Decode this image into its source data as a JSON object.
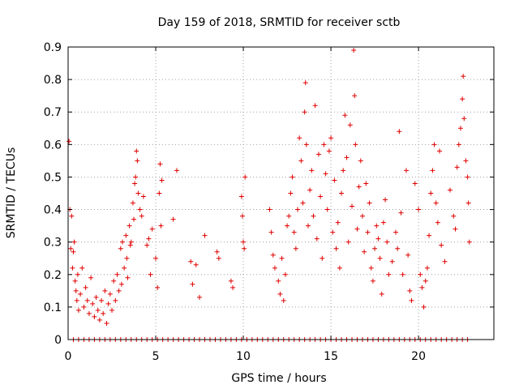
{
  "chart_data": {
    "type": "scatter",
    "title": "Day 159 of 2018, SRMTID for receiver sctb",
    "xlabel": "GPS time / hours",
    "ylabel": "SRMTID / TECUs",
    "xlim": [
      0,
      24.3
    ],
    "ylim": [
      0,
      0.9
    ],
    "xticks": [
      0,
      5,
      10,
      15,
      20
    ],
    "xtick_labels": [
      "0",
      "5",
      "10",
      "15",
      "20"
    ],
    "yticks": [
      0,
      0.1,
      0.2,
      0.3,
      0.4,
      0.5,
      0.6,
      0.7,
      0.8,
      0.9
    ],
    "ytick_labels": [
      "0",
      "0.1",
      "0.2",
      "0.3",
      "0.4",
      "0.5",
      "0.6",
      "0.7",
      "0.8",
      "0.9"
    ],
    "grid": true,
    "marker": "+",
    "color": "#e00000",
    "series": [
      {
        "name": "SRMTID",
        "points": [
          [
            0.05,
            0.61
          ],
          [
            0.1,
            0.4
          ],
          [
            0.2,
            0.38
          ],
          [
            0.15,
            0.28
          ],
          [
            0.25,
            0.22
          ],
          [
            0.3,
            0.27
          ],
          [
            0.35,
            0.3
          ],
          [
            0.4,
            0.18
          ],
          [
            0.45,
            0.15
          ],
          [
            0.5,
            0.12
          ],
          [
            0.55,
            0.2
          ],
          [
            0.6,
            0.09
          ],
          [
            0.7,
            0.14
          ],
          [
            0.8,
            0.22
          ],
          [
            0.9,
            0.1
          ],
          [
            1.0,
            0.16
          ],
          [
            1.1,
            0.12
          ],
          [
            1.2,
            0.08
          ],
          [
            1.3,
            0.19
          ],
          [
            1.4,
            0.11
          ],
          [
            1.5,
            0.07
          ],
          [
            1.6,
            0.13
          ],
          [
            1.7,
            0.09
          ],
          [
            1.8,
            0.06
          ],
          [
            1.9,
            0.12
          ],
          [
            2.0,
            0.08
          ],
          [
            2.1,
            0.15
          ],
          [
            2.2,
            0.05
          ],
          [
            2.3,
            0.11
          ],
          [
            2.4,
            0.14
          ],
          [
            2.5,
            0.09
          ],
          [
            2.6,
            0.18
          ],
          [
            2.7,
            0.12
          ],
          [
            2.8,
            0.2
          ],
          [
            2.9,
            0.15
          ],
          [
            3.0,
            0.28
          ],
          [
            3.05,
            0.17
          ],
          [
            3.1,
            0.3
          ],
          [
            3.2,
            0.22
          ],
          [
            3.3,
            0.32
          ],
          [
            3.35,
            0.25
          ],
          [
            3.4,
            0.19
          ],
          [
            3.5,
            0.35
          ],
          [
            3.55,
            0.29
          ],
          [
            3.6,
            0.3
          ],
          [
            3.7,
            0.42
          ],
          [
            3.75,
            0.37
          ],
          [
            3.8,
            0.48
          ],
          [
            3.85,
            0.5
          ],
          [
            3.9,
            0.58
          ],
          [
            3.95,
            0.55
          ],
          [
            4.0,
            0.45
          ],
          [
            4.1,
            0.4
          ],
          [
            4.2,
            0.38
          ],
          [
            4.3,
            0.44
          ],
          [
            4.5,
            0.29
          ],
          [
            4.6,
            0.31
          ],
          [
            4.7,
            0.2
          ],
          [
            4.8,
            0.34
          ],
          [
            5.0,
            0.25
          ],
          [
            5.1,
            0.16
          ],
          [
            5.2,
            0.45
          ],
          [
            5.25,
            0.54
          ],
          [
            5.3,
            0.35
          ],
          [
            5.35,
            0.49
          ],
          [
            6.2,
            0.52
          ],
          [
            6.0,
            0.37
          ],
          [
            7.0,
            0.24
          ],
          [
            7.1,
            0.17
          ],
          [
            7.3,
            0.23
          ],
          [
            7.5,
            0.13
          ],
          [
            7.8,
            0.32
          ],
          [
            8.5,
            0.27
          ],
          [
            8.6,
            0.25
          ],
          [
            9.3,
            0.18
          ],
          [
            9.4,
            0.16
          ],
          [
            9.9,
            0.44
          ],
          [
            9.95,
            0.38
          ],
          [
            10.0,
            0.3
          ],
          [
            10.05,
            0.28
          ],
          [
            10.1,
            0.5
          ],
          [
            11.5,
            0.4
          ],
          [
            11.6,
            0.33
          ],
          [
            11.7,
            0.26
          ],
          [
            11.8,
            0.22
          ],
          [
            12.0,
            0.18
          ],
          [
            12.1,
            0.14
          ],
          [
            12.2,
            0.25
          ],
          [
            12.3,
            0.12
          ],
          [
            12.4,
            0.2
          ],
          [
            12.5,
            0.35
          ],
          [
            12.6,
            0.38
          ],
          [
            12.7,
            0.45
          ],
          [
            12.8,
            0.5
          ],
          [
            12.9,
            0.33
          ],
          [
            13.0,
            0.28
          ],
          [
            13.1,
            0.4
          ],
          [
            13.2,
            0.62
          ],
          [
            13.3,
            0.55
          ],
          [
            13.4,
            0.42
          ],
          [
            13.5,
            0.7
          ],
          [
            13.55,
            0.79
          ],
          [
            13.6,
            0.6
          ],
          [
            13.7,
            0.35
          ],
          [
            13.8,
            0.46
          ],
          [
            13.9,
            0.52
          ],
          [
            14.0,
            0.38
          ],
          [
            14.1,
            0.72
          ],
          [
            14.2,
            0.31
          ],
          [
            14.3,
            0.57
          ],
          [
            14.4,
            0.44
          ],
          [
            14.5,
            0.25
          ],
          [
            14.6,
            0.6
          ],
          [
            14.7,
            0.51
          ],
          [
            14.8,
            0.4
          ],
          [
            14.9,
            0.58
          ],
          [
            15.0,
            0.62
          ],
          [
            15.1,
            0.33
          ],
          [
            15.2,
            0.49
          ],
          [
            15.3,
            0.28
          ],
          [
            15.4,
            0.36
          ],
          [
            15.5,
            0.22
          ],
          [
            15.6,
            0.45
          ],
          [
            15.7,
            0.52
          ],
          [
            15.8,
            0.69
          ],
          [
            15.9,
            0.56
          ],
          [
            16.0,
            0.3
          ],
          [
            16.1,
            0.66
          ],
          [
            16.2,
            0.41
          ],
          [
            16.3,
            0.89
          ],
          [
            16.35,
            0.75
          ],
          [
            16.4,
            0.6
          ],
          [
            16.5,
            0.34
          ],
          [
            16.6,
            0.47
          ],
          [
            16.7,
            0.55
          ],
          [
            16.8,
            0.38
          ],
          [
            16.9,
            0.27
          ],
          [
            17.0,
            0.48
          ],
          [
            17.1,
            0.33
          ],
          [
            17.2,
            0.42
          ],
          [
            17.3,
            0.22
          ],
          [
            17.4,
            0.18
          ],
          [
            17.5,
            0.28
          ],
          [
            17.6,
            0.35
          ],
          [
            17.7,
            0.31
          ],
          [
            17.8,
            0.25
          ],
          [
            17.9,
            0.14
          ],
          [
            18.0,
            0.36
          ],
          [
            18.1,
            0.43
          ],
          [
            18.2,
            0.3
          ],
          [
            18.3,
            0.2
          ],
          [
            18.5,
            0.24
          ],
          [
            18.7,
            0.33
          ],
          [
            18.8,
            0.28
          ],
          [
            18.9,
            0.64
          ],
          [
            19.0,
            0.39
          ],
          [
            19.1,
            0.2
          ],
          [
            19.3,
            0.52
          ],
          [
            19.4,
            0.26
          ],
          [
            19.5,
            0.15
          ],
          [
            19.6,
            0.12
          ],
          [
            19.8,
            0.48
          ],
          [
            20.0,
            0.4
          ],
          [
            20.1,
            0.2
          ],
          [
            20.2,
            0.16
          ],
          [
            20.3,
            0.1
          ],
          [
            20.4,
            0.18
          ],
          [
            20.5,
            0.22
          ],
          [
            20.6,
            0.32
          ],
          [
            20.7,
            0.45
          ],
          [
            20.8,
            0.52
          ],
          [
            20.9,
            0.6
          ],
          [
            21.0,
            0.42
          ],
          [
            21.1,
            0.36
          ],
          [
            21.2,
            0.58
          ],
          [
            21.3,
            0.29
          ],
          [
            21.5,
            0.24
          ],
          [
            21.8,
            0.46
          ],
          [
            22.0,
            0.38
          ],
          [
            22.1,
            0.34
          ],
          [
            22.2,
            0.53
          ],
          [
            22.3,
            0.6
          ],
          [
            22.4,
            0.65
          ],
          [
            22.5,
            0.74
          ],
          [
            22.55,
            0.81
          ],
          [
            22.6,
            0.68
          ],
          [
            22.7,
            0.55
          ],
          [
            22.8,
            0.5
          ],
          [
            22.85,
            0.42
          ],
          [
            22.9,
            0.3
          ]
        ]
      }
    ],
    "zero_row_note": "dense row of points at 0 along the x axis from 0 to ~23 h",
    "zero_row_points": [
      0.3,
      0.6,
      0.9,
      1.2,
      1.5,
      1.8,
      2.1,
      2.4,
      2.7,
      3.0,
      3.3,
      3.6,
      3.9,
      4.2,
      4.5,
      4.8,
      5.1,
      5.4,
      5.7,
      6.0,
      6.3,
      6.6,
      6.9,
      7.2,
      7.5,
      7.8,
      8.1,
      8.4,
      8.7,
      9.0,
      9.3,
      9.6,
      9.9,
      10.2,
      10.5,
      10.8,
      11.1,
      11.4,
      11.7,
      12.0,
      12.3,
      12.6,
      12.9,
      13.2,
      13.5,
      13.8,
      14.1,
      14.4,
      14.7,
      15.0,
      15.3,
      15.6,
      15.9,
      16.2,
      16.5,
      16.8,
      17.1,
      17.4,
      17.7,
      18.0,
      18.3,
      18.6,
      18.9,
      19.2,
      19.5,
      19.8,
      20.1,
      20.4,
      20.7,
      21.0,
      21.3,
      21.6,
      21.9,
      22.2,
      22.5,
      22.8
    ]
  }
}
